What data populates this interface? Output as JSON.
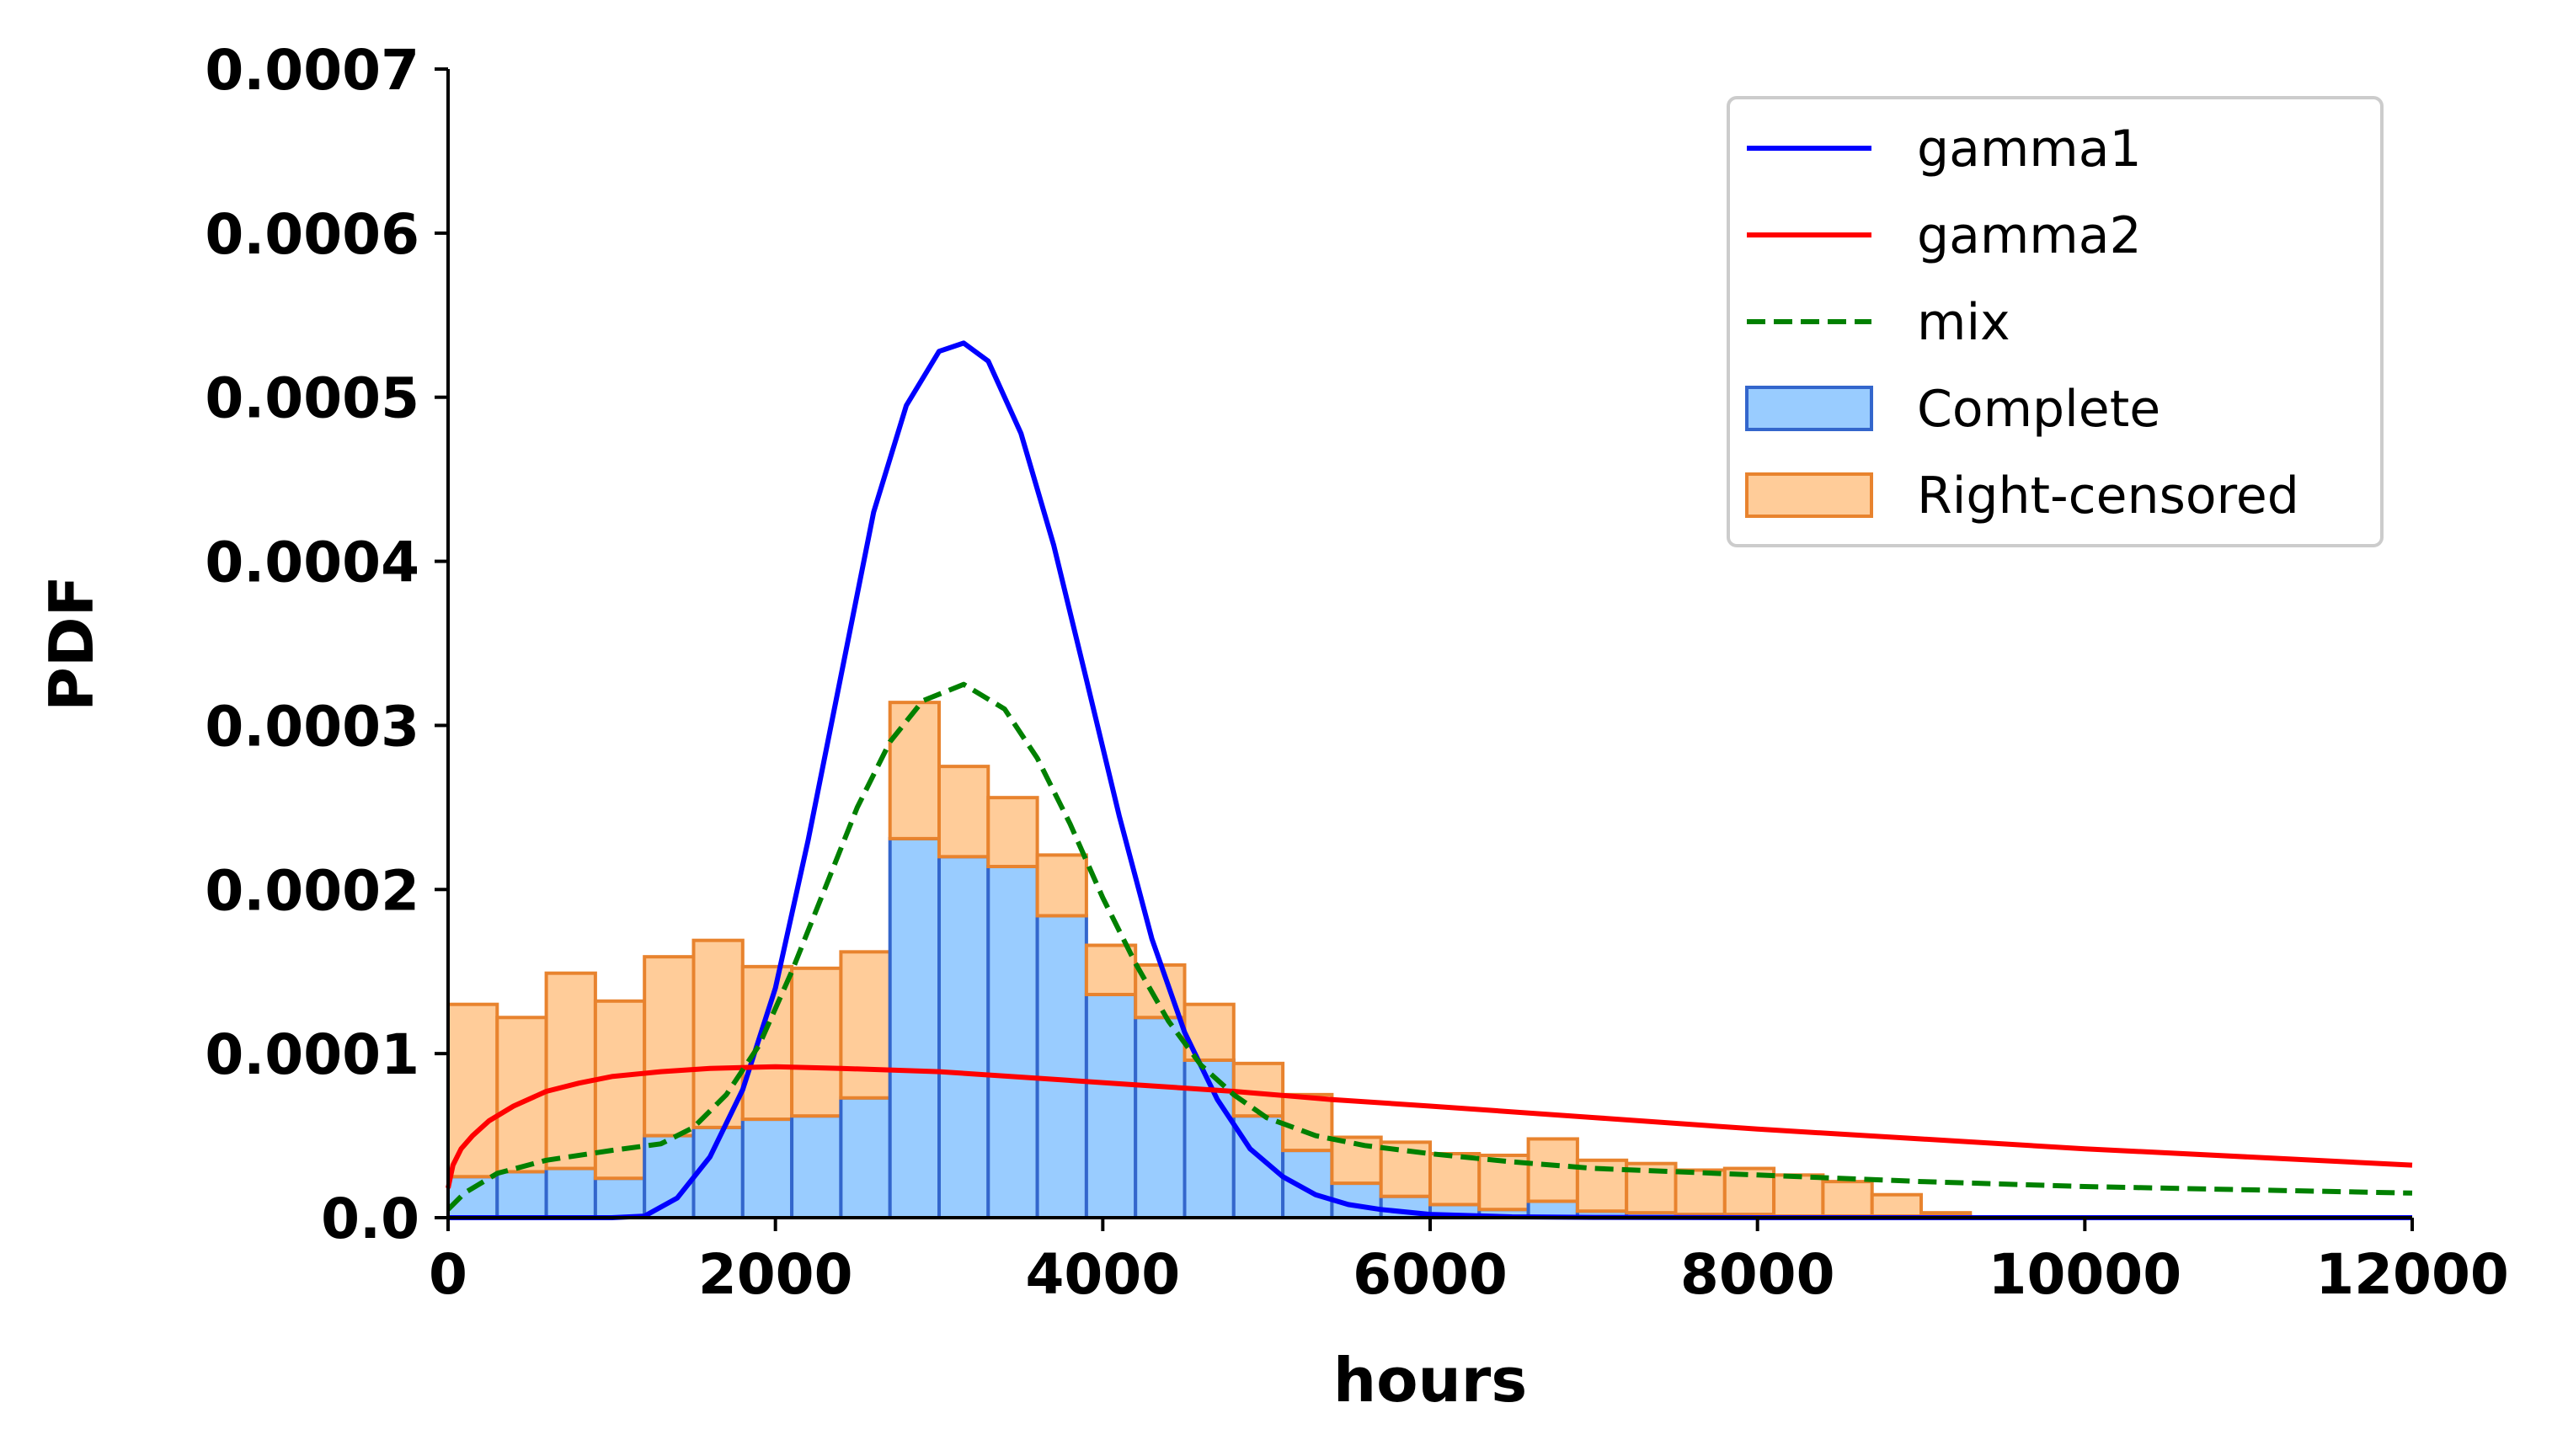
{
  "chart_data": {
    "type": "bar",
    "title": "",
    "xlabel": "hours",
    "ylabel": "PDF",
    "xlim": [
      0,
      12000
    ],
    "ylim": [
      0,
      0.0007
    ],
    "grid": false,
    "legend_position": "top-right",
    "xticks": [
      {
        "value": 0,
        "label": "0"
      },
      {
        "value": 2000,
        "label": "2000"
      },
      {
        "value": 4000,
        "label": "4000"
      },
      {
        "value": 6000,
        "label": "6000"
      },
      {
        "value": 8000,
        "label": "8000"
      },
      {
        "value": 10000,
        "label": "10000"
      },
      {
        "value": 12000,
        "label": "12000"
      }
    ],
    "yticks": [
      {
        "value": 0,
        "label": "0.0"
      },
      {
        "value": 0.0001,
        "label": "0.0001"
      },
      {
        "value": 0.0002,
        "label": "0.0002"
      },
      {
        "value": 0.0003,
        "label": "0.0003"
      },
      {
        "value": 0.0004,
        "label": "0.0004"
      },
      {
        "value": 0.0005,
        "label": "0.0005"
      },
      {
        "value": 0.0006,
        "label": "0.0006"
      },
      {
        "value": 0.0007,
        "label": "0.0007"
      }
    ],
    "histogram": {
      "bin_width": 300,
      "bin_starts": [
        0,
        300,
        600,
        900,
        1200,
        1500,
        1800,
        2100,
        2400,
        2700,
        3000,
        3300,
        3600,
        3900,
        4200,
        4500,
        4800,
        5100,
        5400,
        5700,
        6000,
        6300,
        6600,
        6900,
        7200,
        7500,
        7800,
        8100,
        8400,
        8700,
        9000
      ],
      "series": [
        {
          "name": "Complete",
          "fill": "#99ccff",
          "edge": "#3366cc",
          "values": [
            2.5e-05,
            2.8e-05,
            3e-05,
            2.4e-05,
            5e-05,
            5.5e-05,
            6e-05,
            6.2e-05,
            7.3e-05,
            0.000231,
            0.00022,
            0.000214,
            0.000184,
            0.000136,
            0.000122,
            9.6e-05,
            6.2e-05,
            4.1e-05,
            2.1e-05,
            1.3e-05,
            8e-06,
            5e-06,
            1e-05,
            4e-06,
            3e-06,
            2e-06,
            2e-06,
            1e-06,
            1e-06,
            1e-06,
            1e-06
          ]
        },
        {
          "name": "Right-censored",
          "fill": "#ffcc99",
          "edge": "#e8832e",
          "values": [
            0.000105,
            9.4e-05,
            0.000119,
            0.000108,
            0.000109,
            0.000114,
            9.3e-05,
            9e-05,
            8.9e-05,
            8.3e-05,
            5.5e-05,
            4.2e-05,
            3.7e-05,
            3e-05,
            3.2e-05,
            3.4e-05,
            3.2e-05,
            3.4e-05,
            2.8e-05,
            3.3e-05,
            3.1e-05,
            3.3e-05,
            3.8e-05,
            3.1e-05,
            3e-05,
            2.7e-05,
            2.8e-05,
            2.5e-05,
            2.1e-05,
            1.3e-05,
            2e-06
          ]
        }
      ]
    },
    "curves": [
      {
        "name": "gamma1",
        "color": "#0000ff",
        "dash": "solid",
        "x": [
          0,
          1000,
          1200,
          1400,
          1600,
          1800,
          2000,
          2200,
          2400,
          2600,
          2800,
          3000,
          3150,
          3300,
          3500,
          3700,
          3900,
          4100,
          4300,
          4500,
          4700,
          4900,
          5100,
          5300,
          5500,
          5700,
          6000,
          6500,
          7000,
          8000,
          12000
        ],
        "y": [
          0,
          0,
          1e-06,
          1.2e-05,
          3.7e-05,
          7.8e-05,
          0.00014,
          0.00023,
          0.00033,
          0.00043,
          0.000495,
          0.000528,
          0.000533,
          0.000522,
          0.000478,
          0.00041,
          0.000328,
          0.000245,
          0.00017,
          0.000113,
          7.2e-05,
          4.2e-05,
          2.5e-05,
          1.4e-05,
          8e-06,
          5e-06,
          2e-06,
          5e-07,
          2e-07,
          0,
          0
        ]
      },
      {
        "name": "gamma2",
        "color": "#ff0000",
        "dash": "solid",
        "x": [
          0,
          30,
          80,
          150,
          250,
          400,
          600,
          800,
          1000,
          1300,
          1600,
          2000,
          2400,
          3000,
          3600,
          4200,
          4800,
          5400,
          6000,
          7000,
          8000,
          9000,
          10000,
          11000,
          12000
        ],
        "y": [
          1.8e-05,
          3.2e-05,
          4.2e-05,
          5e-05,
          5.9e-05,
          6.8e-05,
          7.7e-05,
          8.2e-05,
          8.6e-05,
          8.9e-05,
          9.1e-05,
          9.2e-05,
          9.1e-05,
          8.9e-05,
          8.5e-05,
          8.1e-05,
          7.7e-05,
          7.2e-05,
          6.8e-05,
          6.1e-05,
          5.4e-05,
          4.8e-05,
          4.2e-05,
          3.7e-05,
          3.2e-05
        ]
      },
      {
        "name": "mix",
        "color": "#008000",
        "dash": "dashed",
        "x": [
          0,
          100,
          300,
          600,
          1000,
          1300,
          1500,
          1700,
          1900,
          2100,
          2300,
          2500,
          2700,
          2900,
          3150,
          3400,
          3600,
          3800,
          4000,
          4200,
          4400,
          4600,
          4800,
          5000,
          5300,
          5600,
          6000,
          6500,
          7000,
          8000,
          9000,
          10000,
          11000,
          12000
        ],
        "y": [
          5e-06,
          1.5e-05,
          2.7e-05,
          3.5e-05,
          4.1e-05,
          4.5e-05,
          5.5e-05,
          7.5e-05,
          0.000105,
          0.00015,
          0.0002,
          0.00025,
          0.00029,
          0.000315,
          0.000325,
          0.00031,
          0.00028,
          0.00024,
          0.000195,
          0.000155,
          0.00012,
          9.3e-05,
          7.5e-05,
          6.1e-05,
          5e-05,
          4.4e-05,
          3.9e-05,
          3.4e-05,
          3e-05,
          2.6e-05,
          2.2e-05,
          1.9e-05,
          1.7e-05,
          1.5e-05
        ]
      }
    ],
    "legend": [
      {
        "label": "gamma1",
        "kind": "line",
        "color": "#0000ff",
        "dash": "solid"
      },
      {
        "label": "gamma2",
        "kind": "line",
        "color": "#ff0000",
        "dash": "solid"
      },
      {
        "label": "mix",
        "kind": "line",
        "color": "#008000",
        "dash": "dashed"
      },
      {
        "label": "Complete",
        "kind": "patch",
        "fill": "#99ccff",
        "edge": "#3366cc"
      },
      {
        "label": "Right-censored",
        "kind": "patch",
        "fill": "#ffcc99",
        "edge": "#e8832e"
      }
    ]
  }
}
